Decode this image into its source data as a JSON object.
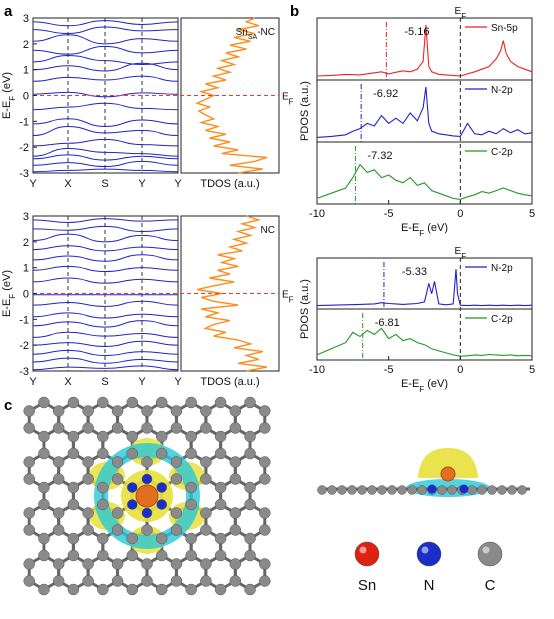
{
  "panel_labels": {
    "a": "a",
    "b": "b",
    "c": "c"
  },
  "colors": {
    "band": "#2222cc",
    "tdos": "#ff8c1a",
    "fermi": "#ff3333",
    "sn": "#ee2222",
    "n": "#2222cc",
    "c": "#229922",
    "frame": "#222222"
  },
  "chart_data": [
    {
      "type": "line",
      "panel": "a-top",
      "title": "",
      "ylabel": "E-E_F (eV)",
      "ylim": [
        -3,
        3
      ],
      "yticks": [
        "3",
        "2",
        "1",
        "0",
        "-1",
        "-2",
        "-3"
      ],
      "kpoints": [
        "Y",
        "X",
        "S",
        "Y",
        "Y"
      ],
      "fermi_label": "E_F",
      "tdos_xlabel": "TDOS (a.u.)",
      "system_label": "SnSA-NC",
      "system_label_main": "Sn",
      "system_label_sub": "SA",
      "system_label_rest": "-NC",
      "bands": [
        [
          -2.95,
          -2.9,
          -2.85,
          -2.9,
          -2.95
        ],
        [
          -2.7,
          -2.6,
          -2.75,
          -2.55,
          -2.7
        ],
        [
          -2.45,
          -2.3,
          -2.5,
          -2.35,
          -2.45
        ],
        [
          -2.35,
          -2.05,
          -2.2,
          -2.25,
          -2.35
        ],
        [
          -1.95,
          -1.85,
          -1.7,
          -1.9,
          -1.95
        ],
        [
          -1.55,
          -1.2,
          -1.45,
          -1.35,
          -1.55
        ],
        [
          -1.1,
          -0.9,
          -1.2,
          -0.95,
          -1.1
        ],
        [
          -0.55,
          -0.45,
          -0.3,
          -0.5,
          -0.55
        ],
        [
          0.05,
          0.12,
          -0.05,
          0.1,
          0.05
        ],
        [
          0.55,
          0.7,
          0.6,
          0.75,
          0.55
        ],
        [
          1.0,
          1.15,
          0.95,
          1.25,
          1.0
        ],
        [
          1.3,
          1.55,
          1.35,
          1.2,
          1.3
        ],
        [
          1.75,
          1.6,
          1.9,
          1.65,
          1.75
        ],
        [
          2.1,
          2.35,
          2.0,
          2.2,
          2.1
        ],
        [
          2.55,
          2.4,
          2.65,
          2.5,
          2.55
        ],
        [
          2.85,
          2.7,
          2.9,
          2.75,
          2.85
        ]
      ],
      "tdos": [
        [
          -3.0,
          0.6
        ],
        [
          -2.85,
          0.9
        ],
        [
          -2.7,
          0.5
        ],
        [
          -2.55,
          0.8
        ],
        [
          -2.4,
          0.95
        ],
        [
          -2.25,
          0.4
        ],
        [
          -2.1,
          0.6
        ],
        [
          -1.95,
          0.3
        ],
        [
          -1.8,
          0.5
        ],
        [
          -1.65,
          0.25
        ],
        [
          -1.5,
          0.45
        ],
        [
          -1.35,
          0.2
        ],
        [
          -1.2,
          0.35
        ],
        [
          -1.05,
          0.15
        ],
        [
          -0.9,
          0.3
        ],
        [
          -0.75,
          0.2
        ],
        [
          -0.6,
          0.12
        ],
        [
          -0.45,
          0.25
        ],
        [
          -0.3,
          0.1
        ],
        [
          -0.15,
          0.2
        ],
        [
          0.0,
          0.3
        ],
        [
          0.15,
          0.15
        ],
        [
          0.3,
          0.35
        ],
        [
          0.45,
          0.2
        ],
        [
          0.6,
          0.45
        ],
        [
          0.75,
          0.3
        ],
        [
          0.9,
          0.5
        ],
        [
          1.05,
          0.35
        ],
        [
          1.2,
          0.55
        ],
        [
          1.35,
          0.4
        ],
        [
          1.5,
          0.6
        ],
        [
          1.65,
          0.45
        ],
        [
          1.8,
          0.7
        ],
        [
          1.95,
          0.5
        ],
        [
          2.1,
          0.75
        ],
        [
          2.25,
          0.55
        ],
        [
          2.4,
          0.8
        ],
        [
          2.55,
          0.6
        ],
        [
          2.7,
          0.85
        ],
        [
          2.85,
          0.7
        ],
        [
          3.0,
          0.8
        ]
      ]
    },
    {
      "type": "line",
      "panel": "a-bottom",
      "title": "",
      "ylabel": "E-E_F (eV)",
      "ylim": [
        -3,
        3
      ],
      "yticks": [
        "3",
        "2",
        "1",
        "0",
        "-1",
        "-2",
        "-3"
      ],
      "kpoints": [
        "Y",
        "X",
        "S",
        "Y",
        "Y"
      ],
      "fermi_label": "E_F",
      "tdos_xlabel": "TDOS (a.u.)",
      "system_label": "NC",
      "bands": [
        [
          -2.95,
          -2.85,
          -2.9,
          -2.8,
          -2.95
        ],
        [
          -2.65,
          -2.5,
          -2.7,
          -2.55,
          -2.65
        ],
        [
          -2.35,
          -2.2,
          -2.4,
          -2.25,
          -2.35
        ],
        [
          -2.0,
          -1.9,
          -2.05,
          -1.85,
          -2.0
        ],
        [
          -1.7,
          -1.5,
          -1.65,
          -1.55,
          -1.7
        ],
        [
          -1.25,
          -1.1,
          -1.3,
          -1.05,
          -1.25
        ],
        [
          -0.9,
          -0.75,
          -0.95,
          -0.8,
          -0.9
        ],
        [
          -0.45,
          -0.35,
          -0.5,
          -0.3,
          -0.45
        ],
        [
          -0.05,
          -0.05,
          -0.05,
          -0.05,
          -0.05
        ],
        [
          0.45,
          0.6,
          0.4,
          0.55,
          0.45
        ],
        [
          0.9,
          1.05,
          0.85,
          1.0,
          0.9
        ],
        [
          1.3,
          1.45,
          1.25,
          1.5,
          1.3
        ],
        [
          1.7,
          1.85,
          1.65,
          1.8,
          1.7
        ],
        [
          2.05,
          2.3,
          2.0,
          2.25,
          2.05
        ],
        [
          2.5,
          2.45,
          2.6,
          2.4,
          2.5
        ],
        [
          2.85,
          2.75,
          2.9,
          2.8,
          2.85
        ]
      ],
      "tdos": [
        [
          -3.0,
          0.7
        ],
        [
          -2.85,
          0.95
        ],
        [
          -2.7,
          0.6
        ],
        [
          -2.55,
          0.85
        ],
        [
          -2.4,
          0.7
        ],
        [
          -2.25,
          0.9
        ],
        [
          -2.1,
          0.55
        ],
        [
          -1.95,
          0.75
        ],
        [
          -1.8,
          0.6
        ],
        [
          -1.65,
          0.3
        ],
        [
          -1.5,
          0.45
        ],
        [
          -1.35,
          0.2
        ],
        [
          -1.2,
          0.3
        ],
        [
          -1.05,
          0.5
        ],
        [
          -0.9,
          0.2
        ],
        [
          -0.75,
          0.35
        ],
        [
          -0.6,
          0.15
        ],
        [
          -0.45,
          0.6
        ],
        [
          -0.3,
          0.3
        ],
        [
          -0.15,
          0.15
        ],
        [
          0.0,
          0.4
        ],
        [
          0.15,
          0.1
        ],
        [
          0.3,
          0.3
        ],
        [
          0.45,
          0.55
        ],
        [
          0.6,
          0.25
        ],
        [
          0.75,
          0.5
        ],
        [
          0.9,
          0.35
        ],
        [
          1.05,
          0.6
        ],
        [
          1.2,
          0.4
        ],
        [
          1.35,
          0.55
        ],
        [
          1.5,
          0.35
        ],
        [
          1.65,
          0.65
        ],
        [
          1.8,
          0.5
        ],
        [
          1.95,
          0.7
        ],
        [
          2.1,
          0.55
        ],
        [
          2.25,
          0.75
        ],
        [
          2.4,
          0.6
        ],
        [
          2.55,
          0.8
        ],
        [
          2.7,
          0.65
        ],
        [
          2.85,
          0.85
        ],
        [
          3.0,
          0.7
        ]
      ]
    },
    {
      "type": "line",
      "panel": "b-top",
      "title": "",
      "xlabel": "E-E_F (eV)",
      "ylabel": "PDOS (a.u.)",
      "xlim": [
        -10,
        5
      ],
      "xticks": [
        "-10",
        "-5",
        "0",
        "5"
      ],
      "fermi_label": "E_F",
      "series": [
        {
          "name": "Sn-5p",
          "center": "-5.16",
          "color": "#ee2222",
          "x": [
            -10,
            -9,
            -8,
            -7,
            -6,
            -5.5,
            -5,
            -4.5,
            -4,
            -3.5,
            -3,
            -2.6,
            -2.4,
            -2.2,
            -2,
            -1.5,
            -1,
            -0.5,
            0,
            0.5,
            1,
            1.5,
            2,
            2.5,
            2.8,
            3,
            3.2,
            3.5,
            4,
            4.5,
            5
          ],
          "y": [
            0.02,
            0.03,
            0.05,
            0.04,
            0.08,
            0.1,
            0.06,
            0.09,
            0.12,
            0.1,
            0.15,
            0.3,
            1.0,
            0.2,
            0.1,
            0.05,
            0.04,
            0.03,
            0.02,
            0.06,
            0.1,
            0.15,
            0.2,
            0.35,
            0.5,
            0.7,
            0.45,
            0.3,
            0.2,
            0.15,
            0.1
          ]
        },
        {
          "name": "N-2p",
          "center": "-6.92",
          "color": "#2222cc",
          "x": [
            -10,
            -9,
            -8,
            -7.5,
            -7,
            -6.5,
            -6,
            -5.5,
            -5,
            -4.5,
            -4,
            -3.5,
            -3,
            -2.6,
            -2.4,
            -2.2,
            -2,
            -1.5,
            -1,
            -0.5,
            0,
            0.5,
            1,
            1.5,
            2,
            2.5,
            3,
            3.5,
            4,
            4.5,
            5
          ],
          "y": [
            0.03,
            0.05,
            0.08,
            0.15,
            0.2,
            0.3,
            0.25,
            0.45,
            0.3,
            0.4,
            0.3,
            0.5,
            0.35,
            0.6,
            1.0,
            0.3,
            0.15,
            0.1,
            0.08,
            0.06,
            0.05,
            0.3,
            0.1,
            0.08,
            0.15,
            0.1,
            0.2,
            0.12,
            0.18,
            0.1,
            0.12
          ]
        },
        {
          "name": "C-2p",
          "center": "-7.32",
          "color": "#229922",
          "x": [
            -10,
            -9,
            -8,
            -7.5,
            -7,
            -6.5,
            -6,
            -5.5,
            -5,
            -4.5,
            -4,
            -3.5,
            -3,
            -2.5,
            -2,
            -1.5,
            -1,
            -0.5,
            0,
            0.5,
            1,
            1.5,
            2,
            2.5,
            3,
            3.5,
            4,
            4.5,
            5
          ],
          "y": [
            0.05,
            0.15,
            0.25,
            0.45,
            0.7,
            0.55,
            0.6,
            0.45,
            0.5,
            0.4,
            0.35,
            0.45,
            0.3,
            0.35,
            0.2,
            0.15,
            0.1,
            0.05,
            0.03,
            0.08,
            0.12,
            0.18,
            0.15,
            0.2,
            0.25,
            0.2,
            0.15,
            0.12,
            0.1
          ]
        }
      ]
    },
    {
      "type": "line",
      "panel": "b-bottom",
      "title": "",
      "xlabel": "E-E_F (eV)",
      "ylabel": "PDOS (a.u.)",
      "xlim": [
        -10,
        5
      ],
      "xticks": [
        "-10",
        "-5",
        "0",
        "5"
      ],
      "fermi_label": "E_F",
      "series": [
        {
          "name": "N-2p",
          "center": "-5.33",
          "color": "#2222cc",
          "x": [
            -10,
            -9,
            -8,
            -7,
            -6,
            -5.5,
            -5,
            -4.5,
            -4,
            -3.5,
            -3,
            -2.5,
            -2.2,
            -2,
            -1.8,
            -1.5,
            -1,
            -0.5,
            -0.3,
            -0.2,
            0,
            0.5,
            1,
            1.5,
            2,
            2.5,
            3,
            3.5,
            4,
            4.5,
            5
          ],
          "y": [
            0.01,
            0.02,
            0.03,
            0.04,
            0.05,
            0.08,
            0.06,
            0.05,
            0.04,
            0.05,
            0.06,
            0.1,
            0.55,
            0.3,
            0.6,
            0.05,
            0.03,
            0.05,
            0.9,
            0.3,
            0.02,
            0.01,
            0.02,
            0.01,
            0.02,
            0.01,
            0.02,
            0.01,
            0.02,
            0.01,
            0.02
          ]
        },
        {
          "name": "C-2p",
          "center": "-6.81",
          "color": "#229922",
          "x": [
            -10,
            -9,
            -8,
            -7.5,
            -7,
            -6.5,
            -6,
            -5.5,
            -5,
            -4.5,
            -4,
            -3.5,
            -3,
            -2.5,
            -2,
            -1.5,
            -1,
            -0.5,
            0,
            0.5,
            1,
            1.5,
            2,
            2.5,
            3,
            3.5,
            4,
            4.5,
            5
          ],
          "y": [
            0.05,
            0.2,
            0.35,
            0.6,
            0.5,
            0.65,
            0.55,
            0.7,
            0.45,
            0.55,
            0.4,
            0.45,
            0.35,
            0.3,
            0.2,
            0.15,
            0.1,
            0.05,
            0.02,
            0.03,
            0.05,
            0.04,
            0.06,
            0.05,
            0.04,
            0.05,
            0.03,
            0.04,
            0.03
          ]
        }
      ]
    }
  ],
  "panel_c": {
    "legend": [
      {
        "element": "Sn",
        "color": "#dd2211"
      },
      {
        "element": "N",
        "color": "#1a2ec8"
      },
      {
        "element": "C",
        "color": "#8a8a8a"
      }
    ]
  }
}
